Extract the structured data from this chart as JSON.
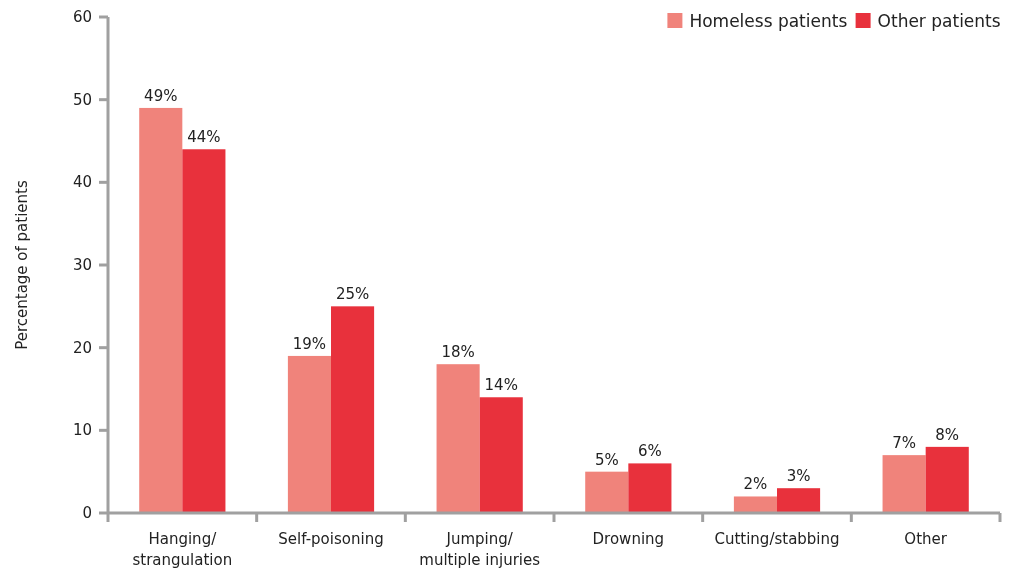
{
  "chart_data": {
    "type": "bar",
    "ylabel": "Percentage of patients",
    "categories": [
      "Hanging/\nstrangulation",
      "Self-poisoning",
      "Jumping/\nmultiple injuries",
      "Drowning",
      "Cutting/stabbing",
      "Other"
    ],
    "series": [
      {
        "name": "Homeless patients",
        "color": "#f0837b",
        "values": [
          49,
          19,
          18,
          5,
          2,
          7
        ],
        "value_labels": [
          "49%",
          "19%",
          "18%",
          "5%",
          "2%",
          "7%"
        ]
      },
      {
        "name": "Other patients",
        "color": "#e8313c",
        "values": [
          44,
          25,
          14,
          6,
          3,
          8
        ],
        "value_labels": [
          "44%",
          "25%",
          "14%",
          "6%",
          "3%",
          "8%"
        ]
      }
    ],
    "ylim": [
      0,
      60
    ],
    "yticks": [
      0,
      10,
      20,
      30,
      40,
      50,
      60
    ],
    "grid": false,
    "legend": "top right"
  }
}
